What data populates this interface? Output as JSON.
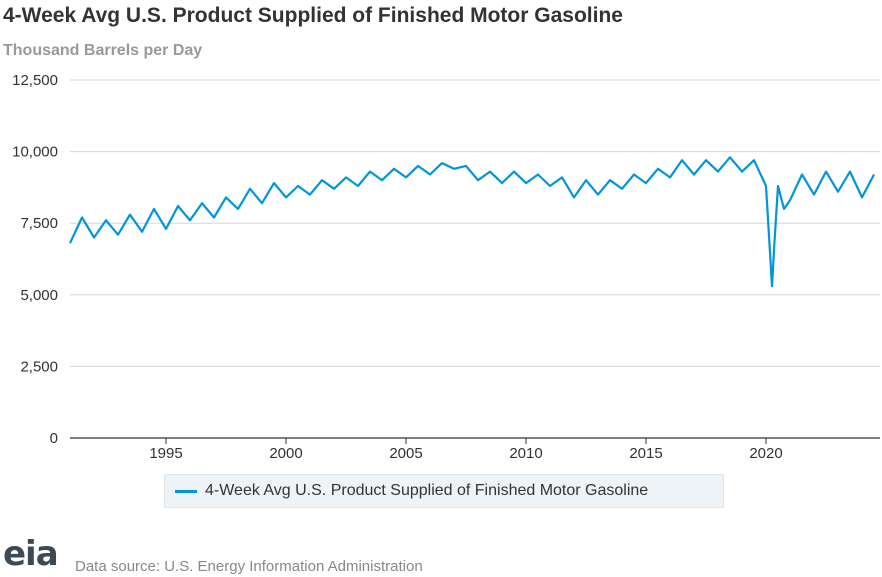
{
  "chart_data": {
    "type": "line",
    "title": "4-Week Avg U.S. Product Supplied of Finished Motor Gasoline",
    "ylabel": "Thousand Barrels per Day",
    "xlabel": "",
    "ylim": [
      0,
      12500
    ],
    "xlim": [
      1991.0,
      2024.75
    ],
    "y_ticks": [
      0,
      2500,
      5000,
      7500,
      10000,
      12500
    ],
    "y_tick_labels": [
      "0",
      "2,500",
      "5,000",
      "7,500",
      "10,000",
      "12,500"
    ],
    "x_ticks": [
      1995,
      2000,
      2005,
      2010,
      2015,
      2020
    ],
    "x_tick_labels": [
      "1995",
      "2000",
      "2005",
      "2010",
      "2015",
      "2020"
    ],
    "grid": "horizontal",
    "legend_position": "bottom",
    "series": [
      {
        "name": "4-Week Avg U.S. Product Supplied of Finished Motor Gasoline",
        "color": "#0096d7",
        "x": [
          1991.0,
          1991.5,
          1992.0,
          1992.5,
          1993.0,
          1993.5,
          1994.0,
          1994.5,
          1995.0,
          1995.5,
          1996.0,
          1996.5,
          1997.0,
          1997.5,
          1998.0,
          1998.5,
          1999.0,
          1999.5,
          2000.0,
          2000.5,
          2001.0,
          2001.5,
          2002.0,
          2002.5,
          2003.0,
          2003.5,
          2004.0,
          2004.5,
          2005.0,
          2005.5,
          2006.0,
          2006.5,
          2007.0,
          2007.5,
          2008.0,
          2008.5,
          2009.0,
          2009.5,
          2010.0,
          2010.5,
          2011.0,
          2011.5,
          2012.0,
          2012.5,
          2013.0,
          2013.5,
          2014.0,
          2014.5,
          2015.0,
          2015.5,
          2016.0,
          2016.5,
          2017.0,
          2017.5,
          2018.0,
          2018.5,
          2019.0,
          2019.5,
          2020.0,
          2020.25,
          2020.35,
          2020.5,
          2020.75,
          2021.0,
          2021.5,
          2022.0,
          2022.5,
          2023.0,
          2023.5,
          2024.0,
          2024.5
        ],
        "values": [
          6800,
          7700,
          7000,
          7600,
          7100,
          7800,
          7200,
          8000,
          7300,
          8100,
          7600,
          8200,
          7700,
          8400,
          8000,
          8700,
          8200,
          8900,
          8400,
          8800,
          8500,
          9000,
          8700,
          9100,
          8800,
          9300,
          9000,
          9400,
          9100,
          9500,
          9200,
          9600,
          9400,
          9500,
          9000,
          9300,
          8900,
          9300,
          8900,
          9200,
          8800,
          9100,
          8400,
          9000,
          8500,
          9000,
          8700,
          9200,
          8900,
          9400,
          9100,
          9700,
          9200,
          9700,
          9300,
          9800,
          9300,
          9700,
          8800,
          5300,
          6800,
          8800,
          8000,
          8300,
          9200,
          8500,
          9300,
          8600,
          9300,
          8400,
          9200
        ]
      }
    ]
  },
  "footer": {
    "logo_text": "eia",
    "source": "Data source: U.S. Energy Information Administration"
  }
}
